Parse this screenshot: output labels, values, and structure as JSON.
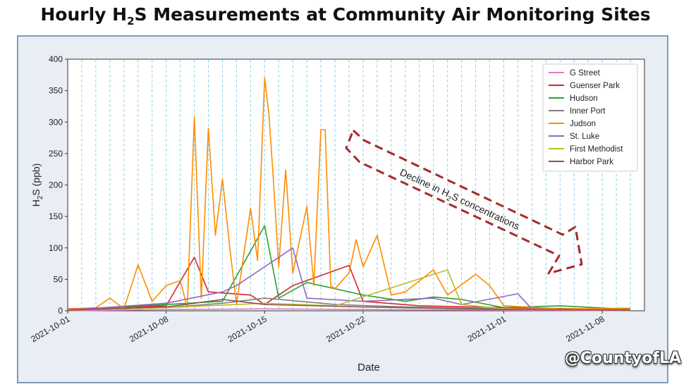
{
  "slide": {
    "title_pre": "Hourly H",
    "title_sub": "2",
    "title_post": "S Measurements at Community Air Monitoring Sites"
  },
  "watermark": "@CountyofLA",
  "annotation": {
    "text_pre": "Decline in H",
    "text_sub": "2",
    "text_post": "S concentrations",
    "color": "#a52a2a"
  },
  "chart_data": {
    "type": "line",
    "title": "",
    "xlabel": "Date",
    "ylabel_pre": "H",
    "ylabel_sub": "2",
    "ylabel_post": "S (ppb)",
    "xlim": [
      "2021-10-01",
      "2021-11-11"
    ],
    "ylim": [
      0,
      400
    ],
    "yticks": [
      0,
      50,
      100,
      150,
      200,
      250,
      300,
      350,
      400
    ],
    "ytick_labels": [
      "0",
      "50",
      "100",
      "150",
      "200",
      "250",
      "300",
      "350",
      "400"
    ],
    "xticks": [
      "2021-10-01",
      "2021-10-08",
      "2021-10-15",
      "2021-10-22",
      "2021-11-01",
      "2021-11-08"
    ],
    "grid": "vertical dashed daily",
    "legend_position": "top-right",
    "series": [
      {
        "name": "G Street",
        "color": "#e377c2",
        "points": [
          [
            "2021-10-01",
            0
          ],
          [
            "2021-10-08",
            2
          ],
          [
            "2021-10-15",
            3
          ],
          [
            "2021-10-22",
            2
          ],
          [
            "2021-11-01",
            1
          ],
          [
            "2021-11-10",
            0
          ]
        ]
      },
      {
        "name": "Guenser Park",
        "color": "#d62728",
        "points": [
          [
            "2021-10-01",
            3
          ],
          [
            "2021-10-04",
            5
          ],
          [
            "2021-10-08",
            8
          ],
          [
            "2021-10-10",
            85
          ],
          [
            "2021-10-11",
            30
          ],
          [
            "2021-10-14",
            25
          ],
          [
            "2021-10-15",
            10
          ],
          [
            "2021-10-17",
            40
          ],
          [
            "2021-10-21",
            72
          ],
          [
            "2021-10-22",
            15
          ],
          [
            "2021-10-26",
            8
          ],
          [
            "2021-11-01",
            5
          ],
          [
            "2021-11-10",
            2
          ]
        ]
      },
      {
        "name": "Hudson",
        "color": "#2ca02c",
        "points": [
          [
            "2021-10-01",
            2
          ],
          [
            "2021-10-08",
            10
          ],
          [
            "2021-10-12",
            15
          ],
          [
            "2021-10-15",
            135
          ],
          [
            "2021-10-16",
            20
          ],
          [
            "2021-10-18",
            45
          ],
          [
            "2021-10-22",
            25
          ],
          [
            "2021-10-25",
            15
          ],
          [
            "2021-10-27",
            22
          ],
          [
            "2021-10-29",
            18
          ],
          [
            "2021-11-01",
            5
          ],
          [
            "2021-11-05",
            8
          ],
          [
            "2021-11-10",
            2
          ]
        ]
      },
      {
        "name": "Inner Port",
        "color": "#7f7f7f",
        "points": [
          [
            "2021-10-01",
            1
          ],
          [
            "2021-10-08",
            5
          ],
          [
            "2021-10-12",
            12
          ],
          [
            "2021-10-15",
            20
          ],
          [
            "2021-10-20",
            10
          ],
          [
            "2021-10-25",
            6
          ],
          [
            "2021-11-01",
            3
          ],
          [
            "2021-11-10",
            1
          ]
        ]
      },
      {
        "name": "Judson",
        "color": "#ff8c00",
        "points": [
          [
            "2021-10-01",
            2
          ],
          [
            "2021-10-03",
            5
          ],
          [
            "2021-10-04",
            20
          ],
          [
            "2021-10-05",
            3
          ],
          [
            "2021-10-06",
            73
          ],
          [
            "2021-10-07",
            15
          ],
          [
            "2021-10-08",
            40
          ],
          [
            "2021-10-09",
            48
          ],
          [
            "2021-10-09.5",
            5
          ],
          [
            "2021-10-10",
            308
          ],
          [
            "2021-10-10.5",
            20
          ],
          [
            "2021-10-11",
            290
          ],
          [
            "2021-10-11.5",
            120
          ],
          [
            "2021-10-12",
            210
          ],
          [
            "2021-10-12.5",
            105
          ],
          [
            "2021-10-13",
            10
          ],
          [
            "2021-10-14",
            163
          ],
          [
            "2021-10-14.5",
            80
          ],
          [
            "2021-10-15",
            370
          ],
          [
            "2021-10-15.3",
            314
          ],
          [
            "2021-10-15.6",
            215
          ],
          [
            "2021-10-16",
            70
          ],
          [
            "2021-10-16.5",
            224
          ],
          [
            "2021-10-17",
            60
          ],
          [
            "2021-10-18",
            166
          ],
          [
            "2021-10-18.5",
            40
          ],
          [
            "2021-10-19",
            288
          ],
          [
            "2021-10-19.3",
            288
          ],
          [
            "2021-10-19.7",
            40
          ],
          [
            "2021-10-20",
            35
          ],
          [
            "2021-10-21",
            60
          ],
          [
            "2021-10-21.5",
            113
          ],
          [
            "2021-10-22",
            70
          ],
          [
            "2021-10-23",
            120
          ],
          [
            "2021-10-24",
            25
          ],
          [
            "2021-10-25",
            30
          ],
          [
            "2021-10-27",
            65
          ],
          [
            "2021-10-28",
            25
          ],
          [
            "2021-10-30",
            58
          ],
          [
            "2021-10-31",
            40
          ],
          [
            "2021-11-01",
            8
          ],
          [
            "2021-11-05",
            3
          ],
          [
            "2021-11-10",
            4
          ]
        ]
      },
      {
        "name": "St. Luke",
        "color": "#9467bd",
        "points": [
          [
            "2021-10-01",
            1
          ],
          [
            "2021-10-08",
            12
          ],
          [
            "2021-10-12",
            30
          ],
          [
            "2021-10-13",
            40
          ],
          [
            "2021-10-17",
            100
          ],
          [
            "2021-10-18",
            20
          ],
          [
            "2021-10-22",
            15
          ],
          [
            "2021-10-27",
            20
          ],
          [
            "2021-10-29",
            10
          ],
          [
            "2021-11-02",
            27
          ],
          [
            "2021-11-03",
            3
          ],
          [
            "2021-11-10",
            1
          ]
        ]
      },
      {
        "name": "First Methodist",
        "color": "#bcbd22",
        "points": [
          [
            "2021-10-01",
            1
          ],
          [
            "2021-10-08",
            5
          ],
          [
            "2021-10-15",
            12
          ],
          [
            "2021-10-20",
            8
          ],
          [
            "2021-10-28",
            65
          ],
          [
            "2021-10-29",
            10
          ],
          [
            "2021-11-01",
            3
          ],
          [
            "2021-11-10",
            1
          ]
        ]
      },
      {
        "name": "Harbor Park",
        "color": "#8c564b",
        "points": [
          [
            "2021-10-01",
            1
          ],
          [
            "2021-10-08",
            6
          ],
          [
            "2021-10-12",
            18
          ],
          [
            "2021-10-15",
            10
          ],
          [
            "2021-10-22",
            6
          ],
          [
            "2021-11-01",
            2
          ],
          [
            "2021-11-10",
            1
          ]
        ]
      }
    ]
  }
}
